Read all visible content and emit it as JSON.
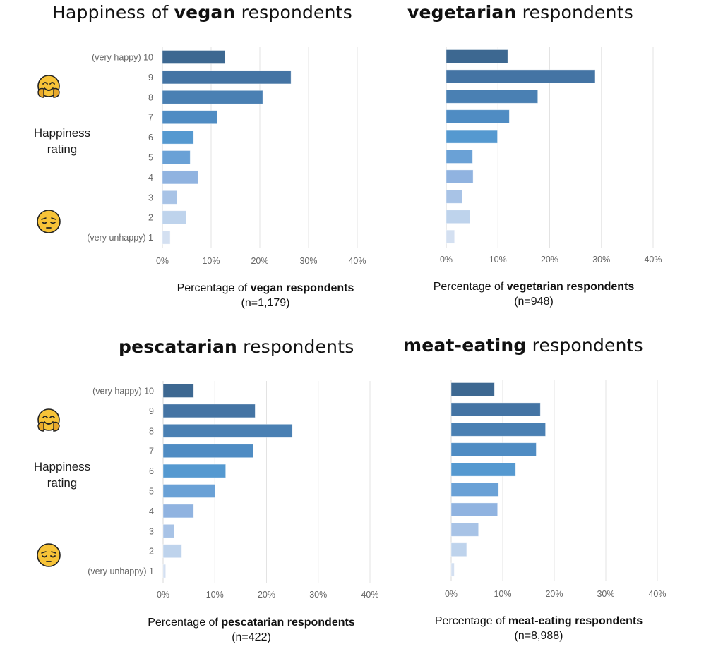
{
  "page": {
    "side_label": [
      "Happiness",
      "rating"
    ],
    "icons": {
      "happy": "hugging-face-emoji",
      "sad": "pensive-face-emoji"
    }
  },
  "colors": [
    "#3d6891",
    "#4474a4",
    "#4a80b3",
    "#4f8cc3",
    "#5599d0",
    "#6aa1d6",
    "#90b3e0",
    "#a8c3e6",
    "#bed3ec",
    "#d4e0f1"
  ],
  "chart_data": [
    {
      "type": "bar",
      "orientation": "horizontal",
      "title_prefix": "Happiness of ",
      "title_bold": "vegan",
      "title_suffix": " respondents",
      "xlabel_prefix": "Percentage of ",
      "xlabel_bold": "vegan respondents",
      "xlabel_n": "(n=1,179)",
      "categories": [
        "(very happy) 10",
        "9",
        "8",
        "7",
        "6",
        "5",
        "4",
        "3",
        "2",
        "(very unhappy) 1"
      ],
      "values": [
        12.9,
        26.4,
        20.6,
        11.3,
        6.4,
        5.7,
        7.3,
        3.0,
        4.9,
        1.6
      ],
      "xlim": [
        0,
        40
      ],
      "xticks": [
        "0%",
        "10%",
        "20%",
        "30%",
        "40%"
      ],
      "show_category_labels": true,
      "grid": true
    },
    {
      "type": "bar",
      "orientation": "horizontal",
      "title_prefix": "",
      "title_bold": "vegetarian",
      "title_suffix": " respondents",
      "xlabel_prefix": "Percentage of ",
      "xlabel_bold": "vegetarian respondents",
      "xlabel_n": "(n=948)",
      "categories": [
        "(very happy) 10",
        "9",
        "8",
        "7",
        "6",
        "5",
        "4",
        "3",
        "2",
        "(very unhappy) 1"
      ],
      "values": [
        11.9,
        28.8,
        17.7,
        12.2,
        9.9,
        5.1,
        5.2,
        3.1,
        4.6,
        1.6
      ],
      "xlim": [
        0,
        40
      ],
      "xticks": [
        "0%",
        "10%",
        "20%",
        "30%",
        "40%"
      ],
      "show_category_labels": false,
      "grid": true
    },
    {
      "type": "bar",
      "orientation": "horizontal",
      "title_prefix": "",
      "title_bold": "pescatarian",
      "title_suffix": " respondents",
      "xlabel_prefix": "Percentage of ",
      "xlabel_bold": "pescatarian respondents",
      "xlabel_n": "(n=422)",
      "categories": [
        "(very happy) 10",
        "9",
        "8",
        "7",
        "6",
        "5",
        "4",
        "3",
        "2",
        "(very unhappy) 1"
      ],
      "values": [
        5.9,
        17.8,
        25.0,
        17.4,
        12.1,
        10.1,
        5.9,
        2.1,
        3.6,
        0.5
      ],
      "xlim": [
        0,
        40
      ],
      "xticks": [
        "0%",
        "10%",
        "20%",
        "30%",
        "40%"
      ],
      "show_category_labels": true,
      "grid": true
    },
    {
      "type": "bar",
      "orientation": "horizontal",
      "title_prefix": "",
      "title_bold": "meat-eating",
      "title_suffix": " respondents",
      "xlabel_prefix": "Percentage of ",
      "xlabel_bold": "meat-eating respondents",
      "xlabel_n": "(n=8,988)",
      "categories": [
        "(very happy) 10",
        "9",
        "8",
        "7",
        "6",
        "5",
        "4",
        "3",
        "2",
        "(very unhappy) 1"
      ],
      "values": [
        8.4,
        17.3,
        18.3,
        16.5,
        12.5,
        9.2,
        9.0,
        5.3,
        3.0,
        0.6
      ],
      "xlim": [
        0,
        40
      ],
      "xticks": [
        "0%",
        "10%",
        "20%",
        "30%",
        "40%"
      ],
      "show_category_labels": false,
      "grid": true
    }
  ]
}
